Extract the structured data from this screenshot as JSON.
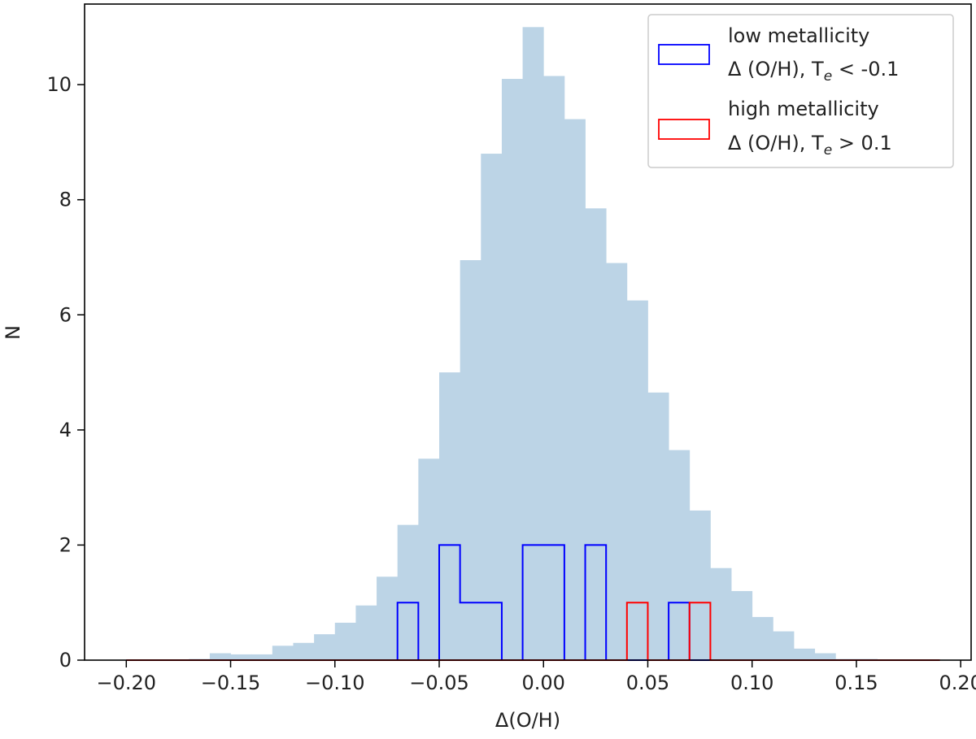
{
  "chart_data": {
    "type": "histogram",
    "title": "",
    "xlabel": "Δ(O/H)",
    "ylabel": "N",
    "xlim": [
      -0.22,
      0.205
    ],
    "ylim": [
      0,
      11.4
    ],
    "xticks": [
      "-0.20",
      "-0.15",
      "-0.10",
      "-0.05",
      "0.00",
      "0.05",
      "0.10",
      "0.15",
      "0.20"
    ],
    "xtick_values": [
      -0.2,
      -0.15,
      -0.1,
      -0.05,
      0.0,
      0.05,
      0.1,
      0.15,
      0.2
    ],
    "yticks": [
      "0",
      "2",
      "4",
      "6",
      "8",
      "10"
    ],
    "ytick_values": [
      0,
      2,
      4,
      6,
      8,
      10
    ],
    "grid": false,
    "legend_position": "top-right",
    "background_hist": {
      "color": "#bcd4e6",
      "bin_edges": [
        -0.2,
        -0.19,
        -0.18,
        -0.17,
        -0.16,
        -0.15,
        -0.14,
        -0.13,
        -0.12,
        -0.11,
        -0.1,
        -0.09,
        -0.08,
        -0.07,
        -0.06,
        -0.05,
        -0.04,
        -0.03,
        -0.02,
        -0.01,
        0.0,
        0.01,
        0.02,
        0.03,
        0.04,
        0.05,
        0.06,
        0.07,
        0.08,
        0.09,
        0.1,
        0.11,
        0.12,
        0.13,
        0.14,
        0.15,
        0.16,
        0.17,
        0.18,
        0.19
      ],
      "counts": [
        0.01,
        0.01,
        0.01,
        0.02,
        0.12,
        0.1,
        0.1,
        0.25,
        0.3,
        0.45,
        0.65,
        0.95,
        1.45,
        2.35,
        3.5,
        5.0,
        6.95,
        8.8,
        10.1,
        11.0,
        10.15,
        9.4,
        7.85,
        6.9,
        6.25,
        4.65,
        3.65,
        2.6,
        1.6,
        1.2,
        0.75,
        0.5,
        0.2,
        0.12,
        0.02,
        0.02,
        0.01,
        0.01,
        0.01
      ]
    },
    "series": [
      {
        "name": "low metallicity Δ (O/H), Te < -0.1",
        "color": "#0000ff",
        "bin_edges": [
          -0.2,
          -0.19,
          -0.18,
          -0.17,
          -0.16,
          -0.15,
          -0.14,
          -0.13,
          -0.12,
          -0.11,
          -0.1,
          -0.09,
          -0.08,
          -0.07,
          -0.06,
          -0.05,
          -0.04,
          -0.03,
          -0.02,
          -0.01,
          0.0,
          0.01,
          0.02,
          0.03,
          0.04,
          0.05,
          0.06,
          0.07,
          0.08,
          0.09,
          0.1,
          0.11,
          0.12,
          0.13,
          0.14,
          0.15,
          0.16,
          0.17,
          0.18,
          0.19
        ],
        "counts": [
          0,
          0,
          0,
          0,
          0,
          0,
          0,
          0,
          0,
          0,
          0,
          0,
          0,
          1,
          0,
          2,
          1,
          1,
          0,
          2,
          2,
          0,
          2,
          0,
          0,
          0,
          1,
          0,
          0,
          0,
          0,
          0,
          0,
          0,
          0,
          0,
          0,
          0,
          0
        ]
      },
      {
        "name": "high metallicity Δ (O/H), Te > 0.1",
        "color": "#ff0000",
        "bin_edges": [
          -0.2,
          -0.19,
          -0.18,
          -0.17,
          -0.16,
          -0.15,
          -0.14,
          -0.13,
          -0.12,
          -0.11,
          -0.1,
          -0.09,
          -0.08,
          -0.07,
          -0.06,
          -0.05,
          -0.04,
          -0.03,
          -0.02,
          -0.01,
          0.0,
          0.01,
          0.02,
          0.03,
          0.04,
          0.05,
          0.06,
          0.07,
          0.08,
          0.09,
          0.1,
          0.11,
          0.12,
          0.13,
          0.14,
          0.15,
          0.16,
          0.17,
          0.18,
          0.19
        ],
        "counts": [
          0,
          0,
          0,
          0,
          0,
          0,
          0,
          0,
          0,
          0,
          0,
          0,
          0,
          0,
          0,
          0,
          0,
          0,
          0,
          0,
          0,
          0,
          0,
          0,
          1,
          0,
          0,
          1,
          0,
          0,
          0,
          0,
          0,
          0,
          0,
          0,
          0,
          0,
          0
        ]
      }
    ],
    "legend": [
      {
        "line1": "low metallicity",
        "line2_main": "Δ (O/H), T",
        "line2_sub": "e",
        "line2_tail": " < -0.1",
        "color": "#0000ff"
      },
      {
        "line1": "high metallicity",
        "line2_main": "Δ (O/H), T",
        "line2_sub": "e",
        "line2_tail": " > 0.1",
        "color": "#ff0000"
      }
    ]
  }
}
